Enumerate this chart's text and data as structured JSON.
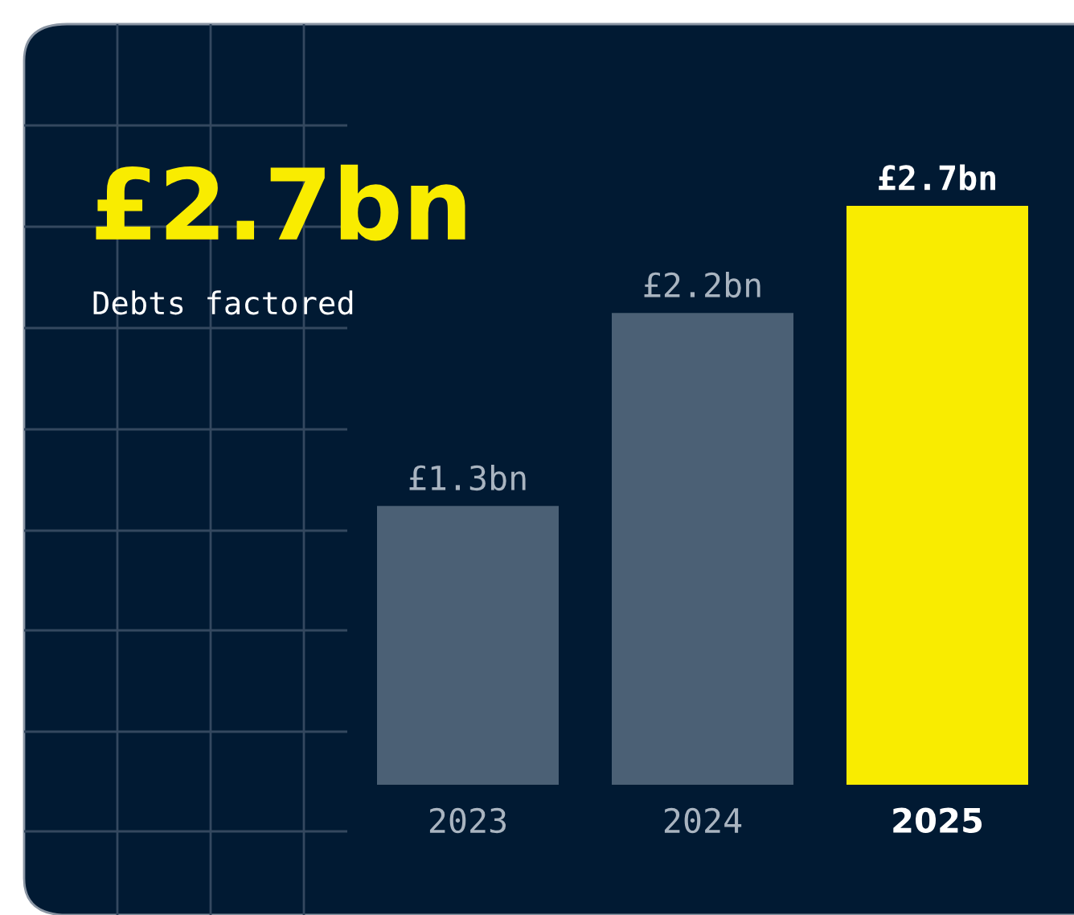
{
  "chart_data": {
    "type": "bar",
    "title": "£2.7bn",
    "subtitle": "Debts factored",
    "categories": [
      "2023",
      "2024",
      "2025"
    ],
    "values": [
      1.3,
      2.2,
      2.7
    ],
    "value_labels": [
      "£1.3bn",
      "£2.2bn",
      "£2.7bn"
    ],
    "colors": [
      "#4b6075",
      "#4b6075",
      "#f9ec00"
    ],
    "grid": false,
    "legend": false
  }
}
